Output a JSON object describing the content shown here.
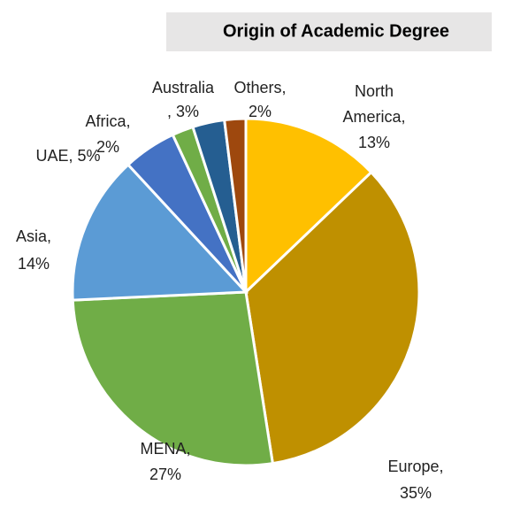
{
  "chart_data": {
    "type": "pie",
    "title": "Origin of Academic Degree",
    "values": [
      13,
      35,
      27,
      14,
      5,
      2,
      3,
      2
    ],
    "value_labels": [
      [
        "North",
        "America,",
        "13%"
      ],
      [
        "Europe,",
        "35%"
      ],
      [
        "MENA,",
        "27%"
      ],
      [
        "Asia,",
        "14%"
      ],
      [
        "UAE, 5%"
      ],
      [
        "Africa,",
        "2%"
      ],
      [
        "Australia",
        ", 3%"
      ],
      [
        "Others,",
        "2%"
      ]
    ],
    "colors": [
      "#FFC000",
      "#BF9000",
      "#70AD47",
      "#5B9BD5",
      "#4472C4",
      "#70AD47",
      "#255E91",
      "#9E480E"
    ]
  }
}
